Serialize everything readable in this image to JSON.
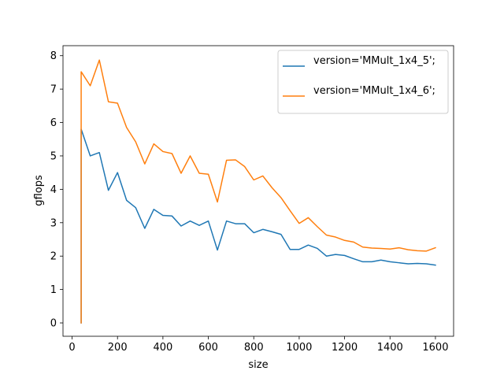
{
  "chart_data": {
    "type": "line",
    "title": "",
    "xlabel": "size",
    "ylabel": "gflops",
    "xlim": [
      -40,
      1680
    ],
    "ylim": [
      -0.4,
      8.3
    ],
    "xticks": [
      0,
      200,
      400,
      600,
      800,
      1000,
      1200,
      1400,
      1600
    ],
    "yticks": [
      0,
      1,
      2,
      3,
      4,
      5,
      6,
      7,
      8
    ],
    "grid": false,
    "legend_position": "top-right",
    "series": [
      {
        "name": "version='MMult_1x4_5';",
        "color": "#1f77b4",
        "x": [
          40,
          40,
          80,
          120,
          160,
          200,
          240,
          280,
          320,
          360,
          400,
          440,
          480,
          520,
          560,
          600,
          640,
          680,
          720,
          760,
          800,
          840,
          880,
          920,
          960,
          1000,
          1040,
          1080,
          1120,
          1160,
          1200,
          1240,
          1280,
          1320,
          1360,
          1400,
          1440,
          1480,
          1520,
          1560,
          1600
        ],
        "y": [
          0,
          5.8,
          5.0,
          5.1,
          3.97,
          4.5,
          3.67,
          3.45,
          2.83,
          3.4,
          3.22,
          3.2,
          2.9,
          3.05,
          2.92,
          3.05,
          2.18,
          3.05,
          2.97,
          2.97,
          2.7,
          2.8,
          2.73,
          2.65,
          2.2,
          2.2,
          2.33,
          2.23,
          2.0,
          2.05,
          2.02,
          1.92,
          1.83,
          1.83,
          1.88,
          1.83,
          1.8,
          1.77,
          1.78,
          1.77,
          1.73
        ]
      },
      {
        "name": "version='MMult_1x4_6';",
        "color": "#ff7f0e",
        "x": [
          40,
          40,
          80,
          120,
          160,
          200,
          240,
          280,
          320,
          360,
          400,
          440,
          480,
          520,
          560,
          600,
          640,
          680,
          720,
          760,
          800,
          840,
          880,
          920,
          960,
          1000,
          1040,
          1080,
          1120,
          1160,
          1200,
          1240,
          1280,
          1320,
          1360,
          1400,
          1440,
          1480,
          1520,
          1560,
          1600
        ],
        "y": [
          0,
          7.52,
          7.1,
          7.87,
          6.62,
          6.58,
          5.85,
          5.42,
          4.76,
          5.36,
          5.13,
          5.07,
          4.48,
          5.0,
          4.48,
          4.45,
          3.62,
          4.87,
          4.88,
          4.68,
          4.28,
          4.4,
          4.05,
          3.75,
          3.36,
          2.98,
          3.15,
          2.88,
          2.63,
          2.57,
          2.47,
          2.42,
          2.27,
          2.24,
          2.23,
          2.21,
          2.25,
          2.19,
          2.16,
          2.15,
          2.25
        ]
      }
    ]
  }
}
